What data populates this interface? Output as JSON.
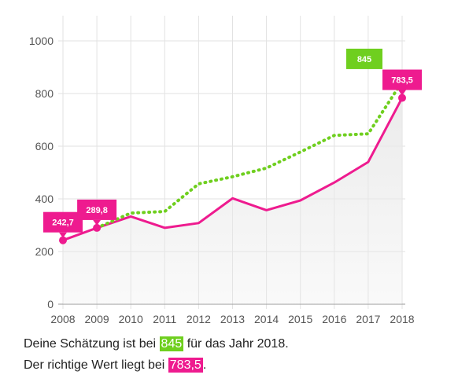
{
  "colors": {
    "guess": "#6fcf1f",
    "actual": "#ee1b8f",
    "grid": "#e2e2e2",
    "axis_text": "#555555",
    "area": "#e9e9e9"
  },
  "chart_data": {
    "type": "line",
    "x": [
      2008,
      2009,
      2010,
      2011,
      2012,
      2013,
      2014,
      2015,
      2016,
      2017,
      2018
    ],
    "ylim": [
      0,
      1000
    ],
    "yticks": [
      0,
      200,
      400,
      600,
      800,
      1000
    ],
    "grid": true,
    "series": [
      {
        "key": "actual",
        "style": "solid",
        "x": [
          2008,
          2009,
          2010,
          2011,
          2012,
          2013,
          2014,
          2015,
          2016,
          2017,
          2018
        ],
        "values": [
          242.7,
          289.8,
          333,
          290,
          308,
          402,
          357,
          394,
          462,
          540,
          783.5
        ]
      },
      {
        "key": "guess",
        "style": "dotted",
        "x": [
          2009,
          2010,
          2011,
          2012,
          2013,
          2014,
          2015,
          2016,
          2017,
          2018
        ],
        "values": [
          289.8,
          346,
          352,
          457,
          484,
          517,
          578,
          641,
          647,
          845
        ]
      }
    ],
    "annotations": [
      {
        "x": 2008,
        "y": 242.7,
        "text": "242,7",
        "series": "actual"
      },
      {
        "x": 2009,
        "y": 289.8,
        "text": "289,8",
        "series": "actual"
      },
      {
        "x": 2018,
        "y": 783.5,
        "text": "783,5",
        "series": "actual"
      },
      {
        "x": 2018,
        "y": 845,
        "text": "845",
        "series": "guess"
      }
    ]
  },
  "summary": {
    "line1_before": "Deine Schätzung ist bei ",
    "line1_value": "845",
    "line1_after": " für das Jahr 2018.",
    "line2_before": "Der richtige Wert liegt bei ",
    "line2_value": "783,5",
    "line2_after": "."
  }
}
